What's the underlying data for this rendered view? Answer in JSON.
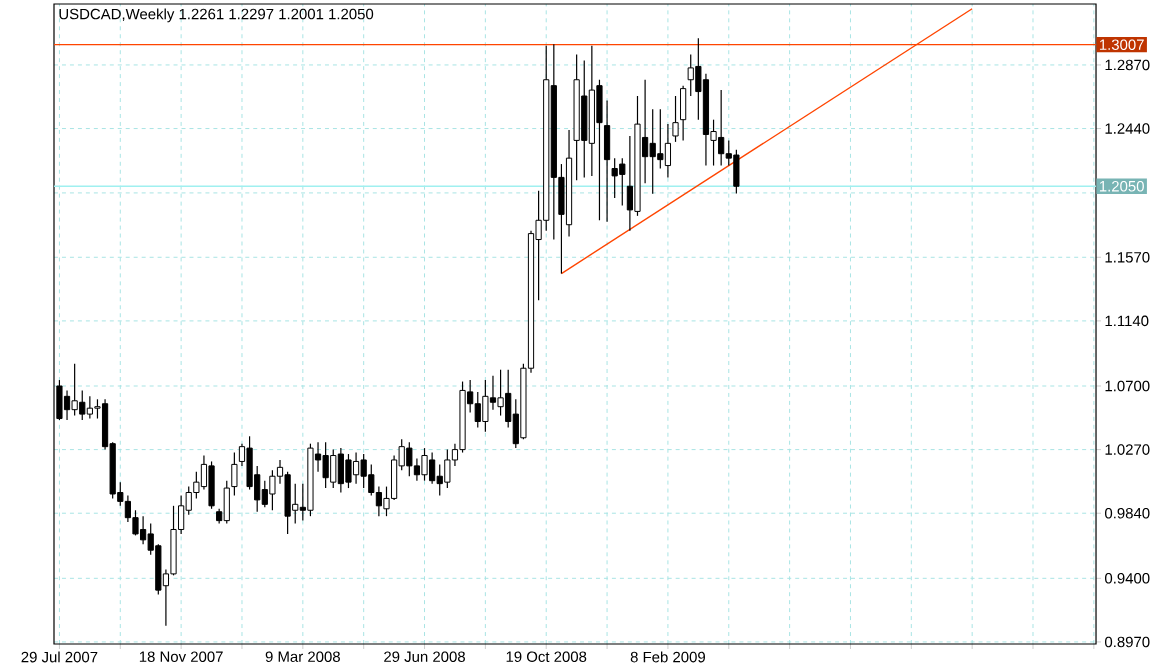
{
  "chart_data": {
    "type": "candlestick",
    "title": "USDCAD,Weekly 1.2261 1.2297 1.2001 1.2050",
    "x": [
      "2007-07-29",
      "2007-08-05",
      "2007-08-12",
      "2007-08-19",
      "2007-08-26",
      "2007-09-02",
      "2007-09-09",
      "2007-09-16",
      "2007-09-23",
      "2007-09-30",
      "2007-10-07",
      "2007-10-14",
      "2007-10-21",
      "2007-10-28",
      "2007-11-04",
      "2007-11-11",
      "2007-11-18",
      "2007-11-25",
      "2007-12-02",
      "2007-12-09",
      "2007-12-16",
      "2007-12-23",
      "2007-12-30",
      "2008-01-06",
      "2008-01-13",
      "2008-01-20",
      "2008-01-27",
      "2008-02-03",
      "2008-02-10",
      "2008-02-17",
      "2008-02-24",
      "2008-03-02",
      "2008-03-09",
      "2008-03-16",
      "2008-03-23",
      "2008-03-30",
      "2008-04-06",
      "2008-04-13",
      "2008-04-20",
      "2008-04-27",
      "2008-05-04",
      "2008-05-11",
      "2008-05-18",
      "2008-05-25",
      "2008-06-01",
      "2008-06-08",
      "2008-06-15",
      "2008-06-22",
      "2008-06-29",
      "2008-07-06",
      "2008-07-13",
      "2008-07-20",
      "2008-07-27",
      "2008-08-03",
      "2008-08-10",
      "2008-08-17",
      "2008-08-24",
      "2008-08-31",
      "2008-09-07",
      "2008-09-14",
      "2008-09-21",
      "2008-09-28",
      "2008-10-05",
      "2008-10-12",
      "2008-10-19",
      "2008-10-26",
      "2008-11-02",
      "2008-11-09",
      "2008-11-16",
      "2008-11-23",
      "2008-11-30",
      "2008-12-07",
      "2008-12-14",
      "2008-12-21",
      "2008-12-28",
      "2009-01-04",
      "2009-01-11",
      "2009-01-18",
      "2009-01-25",
      "2009-02-01",
      "2009-02-08",
      "2009-02-15",
      "2009-02-22",
      "2009-03-01",
      "2009-03-08",
      "2009-03-15",
      "2009-03-22",
      "2009-03-29",
      "2009-04-05",
      "2009-04-12"
    ],
    "ohlc": [
      [
        1.07,
        1.074,
        1.047,
        1.048
      ],
      [
        1.063,
        1.067,
        1.047,
        1.054
      ],
      [
        1.054,
        1.085,
        1.05,
        1.06
      ],
      [
        1.059,
        1.067,
        1.047,
        1.051
      ],
      [
        1.051,
        1.063,
        1.048,
        1.055
      ],
      [
        1.055,
        1.061,
        1.048,
        1.056
      ],
      [
        1.058,
        1.061,
        1.027,
        1.029
      ],
      [
        1.031,
        1.032,
        0.994,
        0.997
      ],
      [
        0.998,
        1.005,
        0.989,
        0.992
      ],
      [
        0.992,
        0.996,
        0.978,
        0.981
      ],
      [
        0.981,
        0.986,
        0.969,
        0.97
      ],
      [
        0.973,
        0.982,
        0.963,
        0.966
      ],
      [
        0.97,
        0.977,
        0.956,
        0.959
      ],
      [
        0.962,
        0.963,
        0.929,
        0.932
      ],
      [
        0.935,
        0.946,
        0.908,
        0.943
      ],
      [
        0.943,
        0.989,
        0.942,
        0.973
      ],
      [
        0.973,
        0.996,
        0.97,
        0.989
      ],
      [
        0.986,
        1.002,
        0.983,
        0.998
      ],
      [
        0.998,
        1.012,
        0.994,
        1.005
      ],
      [
        1.002,
        1.023,
        1.0,
        1.017
      ],
      [
        1.016,
        1.019,
        0.987,
        0.989
      ],
      [
        0.985,
        0.987,
        0.977,
        0.979
      ],
      [
        0.979,
        1.006,
        0.977,
        1.001
      ],
      [
        1.002,
        1.025,
        0.996,
        1.017
      ],
      [
        1.019,
        1.031,
        1.016,
        1.029
      ],
      [
        1.028,
        1.036,
        1.0,
        1.002
      ],
      [
        1.01,
        1.016,
        0.985,
        0.993
      ],
      [
        1.0,
        1.006,
        0.988,
        0.99
      ],
      [
        0.997,
        1.013,
        0.986,
        1.009
      ],
      [
        1.009,
        1.02,
        1.004,
        1.015
      ],
      [
        1.01,
        1.012,
        0.97,
        0.982
      ],
      [
        0.986,
        1.004,
        0.977,
        0.99
      ],
      [
        0.988,
        1.004,
        0.979,
        0.986
      ],
      [
        0.986,
        1.031,
        0.982,
        1.028
      ],
      [
        1.024,
        1.032,
        1.012,
        1.02
      ],
      [
        1.023,
        1.032,
        1.001,
        1.008
      ],
      [
        1.005,
        1.027,
        1.001,
        1.023
      ],
      [
        1.024,
        1.028,
        0.998,
        1.004
      ],
      [
        1.02,
        1.024,
        1.001,
        1.005
      ],
      [
        1.01,
        1.025,
        1.004,
        1.019
      ],
      [
        1.02,
        1.024,
        1.001,
        1.009
      ],
      [
        1.01,
        1.017,
        0.996,
        0.998
      ],
      [
        0.998,
        1.002,
        0.982,
        0.989
      ],
      [
        0.987,
        1.002,
        0.982,
        0.994
      ],
      [
        0.994,
        1.023,
        0.993,
        1.02
      ],
      [
        1.016,
        1.034,
        1.013,
        1.029
      ],
      [
        1.028,
        1.032,
        1.009,
        1.016
      ],
      [
        1.016,
        1.021,
        1.006,
        1.01
      ],
      [
        1.01,
        1.028,
        1.006,
        1.023
      ],
      [
        1.02,
        1.025,
        1.004,
        1.006
      ],
      [
        1.009,
        1.017,
        0.996,
        1.004
      ],
      [
        1.005,
        1.027,
        1.001,
        1.02
      ],
      [
        1.02,
        1.031,
        1.016,
        1.027
      ],
      [
        1.027,
        1.073,
        1.025,
        1.067
      ],
      [
        1.066,
        1.074,
        1.052,
        1.058
      ],
      [
        1.058,
        1.066,
        1.042,
        1.046
      ],
      [
        1.046,
        1.074,
        1.039,
        1.063
      ],
      [
        1.062,
        1.077,
        1.054,
        1.059
      ],
      [
        1.056,
        1.081,
        1.05,
        1.062
      ],
      [
        1.065,
        1.081,
        1.042,
        1.046
      ],
      [
        1.051,
        1.061,
        1.028,
        1.031
      ],
      [
        1.035,
        1.085,
        1.034,
        1.082
      ],
      [
        1.082,
        1.175,
        1.079,
        1.173
      ],
      [
        1.169,
        1.202,
        1.128,
        1.182
      ],
      [
        1.182,
        1.3,
        1.175,
        1.277
      ],
      [
        1.273,
        1.301,
        1.169,
        1.211
      ],
      [
        1.211,
        1.22,
        1.146,
        1.186
      ],
      [
        1.179,
        1.243,
        1.171,
        1.224
      ],
      [
        1.236,
        1.294,
        1.209,
        1.277
      ],
      [
        1.266,
        1.29,
        1.211,
        1.236
      ],
      [
        1.234,
        1.3,
        1.212,
        1.27
      ],
      [
        1.273,
        1.277,
        1.182,
        1.248
      ],
      [
        1.246,
        1.263,
        1.181,
        1.223
      ],
      [
        1.217,
        1.224,
        1.197,
        1.212
      ],
      [
        1.22,
        1.224,
        1.192,
        1.213
      ],
      [
        1.205,
        1.239,
        1.175,
        1.189
      ],
      [
        1.188,
        1.266,
        1.185,
        1.247
      ],
      [
        1.238,
        1.277,
        1.207,
        1.225
      ],
      [
        1.234,
        1.257,
        1.2,
        1.225
      ],
      [
        1.227,
        1.257,
        1.217,
        1.223
      ],
      [
        1.219,
        1.247,
        1.211,
        1.234
      ],
      [
        1.239,
        1.266,
        1.235,
        1.248
      ],
      [
        1.25,
        1.273,
        1.236,
        1.271
      ],
      [
        1.277,
        1.294,
        1.266,
        1.285
      ],
      [
        1.286,
        1.305,
        1.25,
        1.269
      ],
      [
        1.277,
        1.281,
        1.219,
        1.24
      ],
      [
        1.236,
        1.25,
        1.219,
        1.242
      ],
      [
        1.238,
        1.27,
        1.219,
        1.227
      ],
      [
        1.227,
        1.236,
        1.219,
        1.224
      ],
      [
        1.2261,
        1.2297,
        1.2001,
        1.205
      ]
    ],
    "series": [
      {
        "type": "line",
        "color": "#ff4500",
        "x": [
          "2008-11-02",
          "2009-11-15"
        ],
        "values": [
          1.146,
          1.325
        ]
      }
    ],
    "ref_lines": [
      {
        "axis": "y",
        "value": 1.3007,
        "label": "1.3007",
        "color": "#ff4500"
      },
      {
        "axis": "y",
        "value": 1.205,
        "label": "1.2050",
        "color": "#a0f0f0"
      }
    ],
    "xlim": [
      "2007-07-24",
      "2010-03-09"
    ],
    "xticks": [
      {
        "value": "2007-07-29",
        "label": "29 Jul 2007"
      },
      {
        "value": "2007-09-23",
        "label": null
      },
      {
        "value": "2007-11-18",
        "label": "18 Nov 2007"
      },
      {
        "value": "2008-01-13",
        "label": null
      },
      {
        "value": "2008-03-09",
        "label": "9 Mar 2008"
      },
      {
        "value": "2008-05-04",
        "label": null
      },
      {
        "value": "2008-06-29",
        "label": "29 Jun 2008"
      },
      {
        "value": "2008-08-24",
        "label": null
      },
      {
        "value": "2008-10-19",
        "label": "19 Oct 2008"
      },
      {
        "value": "2008-12-14",
        "label": null
      },
      {
        "value": "2009-02-08",
        "label": "8 Feb 2009"
      },
      {
        "value": "2009-04-05",
        "label": null
      },
      {
        "value": "2009-05-31",
        "label": null
      },
      {
        "value": "2009-07-26",
        "label": null
      },
      {
        "value": "2009-09-20",
        "label": null
      },
      {
        "value": "2009-11-15",
        "label": null
      },
      {
        "value": "2010-01-10",
        "label": null
      },
      {
        "value": "2010-03-07",
        "label": null
      }
    ],
    "ylim": [
      0.8956,
      1.3282
    ],
    "yticks": [
      {
        "value": 0.897,
        "label": "0.8970"
      },
      {
        "value": 0.94,
        "label": "0.9400"
      },
      {
        "value": 0.984,
        "label": "0.9840"
      },
      {
        "value": 1.027,
        "label": "1.0270"
      },
      {
        "value": 1.07,
        "label": "1.0700"
      },
      {
        "value": 1.114,
        "label": "1.1140"
      },
      {
        "value": 1.157,
        "label": "1.1570"
      },
      {
        "value": 1.2005,
        "label": null
      },
      {
        "value": 1.244,
        "label": "1.2440"
      },
      {
        "value": 1.287,
        "label": "1.2870"
      }
    ],
    "grid": true
  }
}
